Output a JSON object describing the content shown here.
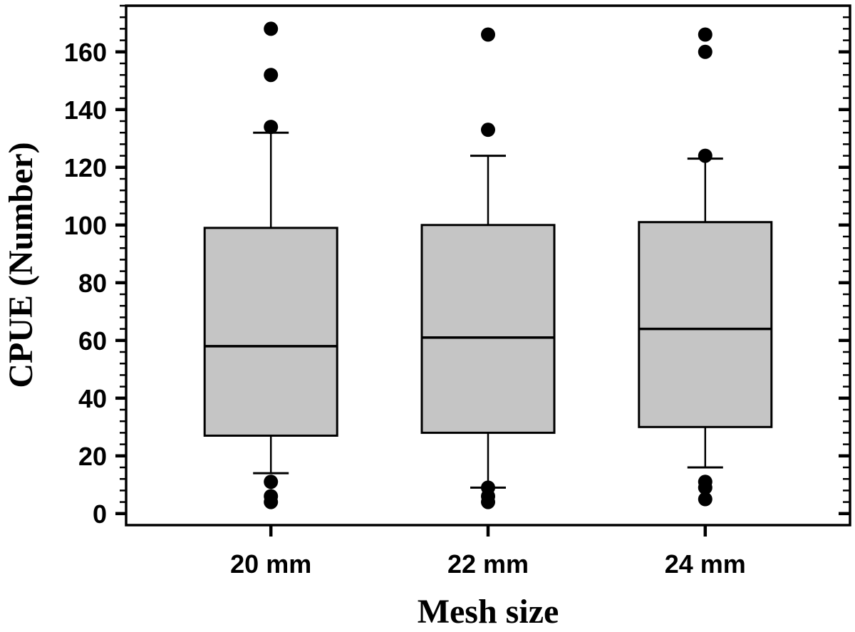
{
  "chart_data": {
    "type": "box",
    "title": "",
    "xlabel": "Mesh size",
    "ylabel": "CPUE (Number)",
    "categories": [
      "20 mm",
      "22 mm",
      "24 mm"
    ],
    "y_axis": {
      "min": -4,
      "max": 176,
      "major_ticks": [
        0,
        20,
        40,
        60,
        80,
        100,
        120,
        140,
        160
      ],
      "minor_tick_interval": 4,
      "grid": false,
      "left_ticks_direction": "outward",
      "right_ticks_direction": "inward"
    },
    "legend_position": "none",
    "boxes": [
      {
        "category": "20 mm",
        "whisker_low": 14,
        "q1": 27,
        "median": 58,
        "q3": 99,
        "whisker_high": 132,
        "outliers_high": [
          168,
          152,
          134
        ],
        "outliers_low": [
          11,
          6,
          4
        ]
      },
      {
        "category": "22 mm",
        "whisker_low": 9,
        "q1": 28,
        "median": 61,
        "q3": 100,
        "whisker_high": 124,
        "outliers_high": [
          166,
          133
        ],
        "outliers_low": [
          9,
          6,
          4
        ]
      },
      {
        "category": "24 mm",
        "whisker_low": 16,
        "q1": 30,
        "median": 64,
        "q3": 101,
        "whisker_high": 123,
        "outliers_high": [
          166,
          160,
          124
        ],
        "outliers_low": [
          11,
          9,
          5
        ]
      }
    ],
    "colors": {
      "box_fill": "#c5c5c5",
      "stroke": "#000000",
      "outlier_fill": "#000000",
      "background": "#ffffff"
    }
  }
}
